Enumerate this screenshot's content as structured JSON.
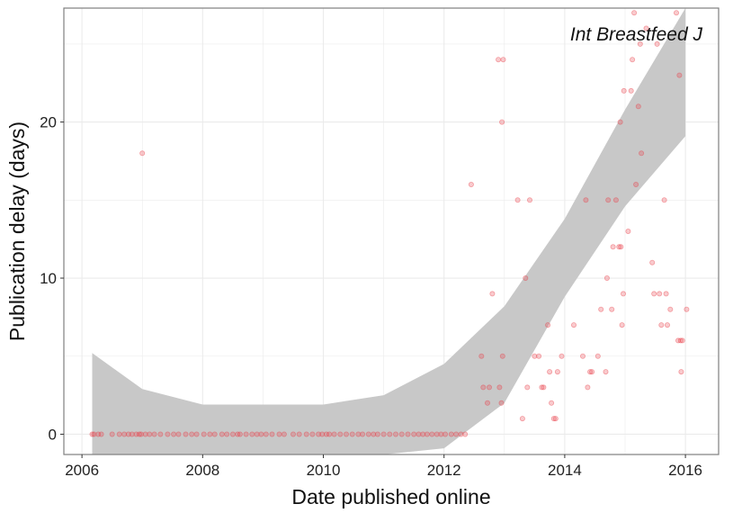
{
  "chart_data": {
    "type": "scatter",
    "title": "",
    "annotation": "Int Breastfeed J",
    "xlabel": "Date published online",
    "ylabel": "Publication delay (days)",
    "xlim": [
      2005.7,
      2016.55
    ],
    "ylim": [
      -1.3,
      27.3
    ],
    "grid": true,
    "legend": "none",
    "colors": {
      "point": "#e8404a",
      "band": "#c8c8c8",
      "grid": "#ebebeb",
      "frame": "#7f7f7f"
    },
    "x_ticks": [
      {
        "value": 2006,
        "label": "2006"
      },
      {
        "value": 2008,
        "label": "2008"
      },
      {
        "value": 2010,
        "label": "2010"
      },
      {
        "value": 2012,
        "label": "2012"
      },
      {
        "value": 2014,
        "label": "2014"
      },
      {
        "value": 2016,
        "label": "2016"
      }
    ],
    "y_ticks": [
      {
        "value": 0,
        "label": "0"
      },
      {
        "value": 10,
        "label": "10"
      },
      {
        "value": 20,
        "label": "20"
      }
    ],
    "smooth_band": {
      "x": [
        2006.17,
        2007.0,
        2008.0,
        2009.0,
        2010.0,
        2011.0,
        2012.0,
        2013.0,
        2014.0,
        2015.0,
        2016.0
      ],
      "upper": [
        5.2,
        2.9,
        1.9,
        1.9,
        1.9,
        2.5,
        4.5,
        8.2,
        13.8,
        20.8,
        27.3
      ],
      "lower": [
        null,
        null,
        null,
        null,
        null,
        null,
        -0.9,
        2.0,
        8.8,
        14.6,
        19.1
      ]
    },
    "points": [
      {
        "x": 2006.17,
        "y": 0
      },
      {
        "x": 2006.2,
        "y": 0
      },
      {
        "x": 2006.27,
        "y": 0
      },
      {
        "x": 2006.32,
        "y": 0
      },
      {
        "x": 2006.5,
        "y": 0
      },
      {
        "x": 2006.62,
        "y": 0
      },
      {
        "x": 2006.7,
        "y": 0
      },
      {
        "x": 2006.77,
        "y": 0
      },
      {
        "x": 2006.83,
        "y": 0
      },
      {
        "x": 2006.9,
        "y": 0
      },
      {
        "x": 2006.95,
        "y": 0
      },
      {
        "x": 2006.98,
        "y": 0
      },
      {
        "x": 2007.0,
        "y": 18
      },
      {
        "x": 2007.05,
        "y": 0
      },
      {
        "x": 2007.12,
        "y": 0
      },
      {
        "x": 2007.2,
        "y": 0
      },
      {
        "x": 2007.3,
        "y": 0
      },
      {
        "x": 2007.42,
        "y": 0
      },
      {
        "x": 2007.52,
        "y": 0
      },
      {
        "x": 2007.6,
        "y": 0
      },
      {
        "x": 2007.72,
        "y": 0
      },
      {
        "x": 2007.82,
        "y": 0
      },
      {
        "x": 2007.9,
        "y": 0
      },
      {
        "x": 2008.02,
        "y": 0
      },
      {
        "x": 2008.12,
        "y": 0
      },
      {
        "x": 2008.2,
        "y": 0
      },
      {
        "x": 2008.32,
        "y": 0
      },
      {
        "x": 2008.4,
        "y": 0
      },
      {
        "x": 2008.5,
        "y": 0
      },
      {
        "x": 2008.58,
        "y": 0
      },
      {
        "x": 2008.62,
        "y": 0
      },
      {
        "x": 2008.72,
        "y": 0
      },
      {
        "x": 2008.82,
        "y": 0
      },
      {
        "x": 2008.9,
        "y": 0
      },
      {
        "x": 2008.97,
        "y": 0
      },
      {
        "x": 2009.05,
        "y": 0
      },
      {
        "x": 2009.15,
        "y": 0
      },
      {
        "x": 2009.27,
        "y": 0
      },
      {
        "x": 2009.35,
        "y": 0
      },
      {
        "x": 2009.5,
        "y": 0
      },
      {
        "x": 2009.6,
        "y": 0
      },
      {
        "x": 2009.72,
        "y": 0
      },
      {
        "x": 2009.82,
        "y": 0
      },
      {
        "x": 2009.92,
        "y": 0
      },
      {
        "x": 2009.98,
        "y": 0
      },
      {
        "x": 2010.05,
        "y": 0
      },
      {
        "x": 2010.1,
        "y": 0
      },
      {
        "x": 2010.18,
        "y": 0
      },
      {
        "x": 2010.28,
        "y": 0
      },
      {
        "x": 2010.38,
        "y": 0
      },
      {
        "x": 2010.48,
        "y": 0
      },
      {
        "x": 2010.58,
        "y": 0
      },
      {
        "x": 2010.65,
        "y": 0
      },
      {
        "x": 2010.75,
        "y": 0
      },
      {
        "x": 2010.83,
        "y": 0
      },
      {
        "x": 2010.9,
        "y": 0
      },
      {
        "x": 2011.0,
        "y": 0
      },
      {
        "x": 2011.1,
        "y": 0
      },
      {
        "x": 2011.2,
        "y": 0
      },
      {
        "x": 2011.3,
        "y": 0
      },
      {
        "x": 2011.4,
        "y": 0
      },
      {
        "x": 2011.5,
        "y": 0
      },
      {
        "x": 2011.58,
        "y": 0
      },
      {
        "x": 2011.65,
        "y": 0
      },
      {
        "x": 2011.72,
        "y": 0
      },
      {
        "x": 2011.8,
        "y": 0
      },
      {
        "x": 2011.88,
        "y": 0
      },
      {
        "x": 2011.95,
        "y": 0
      },
      {
        "x": 2012.02,
        "y": 0
      },
      {
        "x": 2012.12,
        "y": 0
      },
      {
        "x": 2012.2,
        "y": 0
      },
      {
        "x": 2012.28,
        "y": 0
      },
      {
        "x": 2012.35,
        "y": 0
      },
      {
        "x": 2012.45,
        "y": 16
      },
      {
        "x": 2012.62,
        "y": 5
      },
      {
        "x": 2012.65,
        "y": 3
      },
      {
        "x": 2012.72,
        "y": 2
      },
      {
        "x": 2012.75,
        "y": 3
      },
      {
        "x": 2012.8,
        "y": 9
      },
      {
        "x": 2012.9,
        "y": 24
      },
      {
        "x": 2012.92,
        "y": 3
      },
      {
        "x": 2012.96,
        "y": 20
      },
      {
        "x": 2012.97,
        "y": 5
      },
      {
        "x": 2012.98,
        "y": 24
      },
      {
        "x": 2012.95,
        "y": 2
      },
      {
        "x": 2013.22,
        "y": 15
      },
      {
        "x": 2013.3,
        "y": 1
      },
      {
        "x": 2013.35,
        "y": 10
      },
      {
        "x": 2013.38,
        "y": 3
      },
      {
        "x": 2013.42,
        "y": 15
      },
      {
        "x": 2013.5,
        "y": 5
      },
      {
        "x": 2013.57,
        "y": 5
      },
      {
        "x": 2013.62,
        "y": 3
      },
      {
        "x": 2013.65,
        "y": 3
      },
      {
        "x": 2013.72,
        "y": 7
      },
      {
        "x": 2013.75,
        "y": 4
      },
      {
        "x": 2013.78,
        "y": 2
      },
      {
        "x": 2013.82,
        "y": 1
      },
      {
        "x": 2013.85,
        "y": 1
      },
      {
        "x": 2013.88,
        "y": 4
      },
      {
        "x": 2013.95,
        "y": 5
      },
      {
        "x": 2014.15,
        "y": 7
      },
      {
        "x": 2014.3,
        "y": 5
      },
      {
        "x": 2014.35,
        "y": 15
      },
      {
        "x": 2014.38,
        "y": 3
      },
      {
        "x": 2014.42,
        "y": 4
      },
      {
        "x": 2014.45,
        "y": 4
      },
      {
        "x": 2014.55,
        "y": 5
      },
      {
        "x": 2014.6,
        "y": 8
      },
      {
        "x": 2014.68,
        "y": 4
      },
      {
        "x": 2014.7,
        "y": 10
      },
      {
        "x": 2014.72,
        "y": 15
      },
      {
        "x": 2014.78,
        "y": 8
      },
      {
        "x": 2014.8,
        "y": 12
      },
      {
        "x": 2014.85,
        "y": 15
      },
      {
        "x": 2014.9,
        "y": 12
      },
      {
        "x": 2014.92,
        "y": 20
      },
      {
        "x": 2014.93,
        "y": 12
      },
      {
        "x": 2014.95,
        "y": 7
      },
      {
        "x": 2014.97,
        "y": 9
      },
      {
        "x": 2014.98,
        "y": 22
      },
      {
        "x": 2015.05,
        "y": 13
      },
      {
        "x": 2015.1,
        "y": 22
      },
      {
        "x": 2015.12,
        "y": 24
      },
      {
        "x": 2015.15,
        "y": 27
      },
      {
        "x": 2015.18,
        "y": 16
      },
      {
        "x": 2015.22,
        "y": 21
      },
      {
        "x": 2015.25,
        "y": 25
      },
      {
        "x": 2015.27,
        "y": 18
      },
      {
        "x": 2015.35,
        "y": 26
      },
      {
        "x": 2015.45,
        "y": 11
      },
      {
        "x": 2015.48,
        "y": 9
      },
      {
        "x": 2015.53,
        "y": 25
      },
      {
        "x": 2015.57,
        "y": 9
      },
      {
        "x": 2015.6,
        "y": 7
      },
      {
        "x": 2015.65,
        "y": 15
      },
      {
        "x": 2015.68,
        "y": 9
      },
      {
        "x": 2015.7,
        "y": 7
      },
      {
        "x": 2015.75,
        "y": 8
      },
      {
        "x": 2015.85,
        "y": 27
      },
      {
        "x": 2015.88,
        "y": 6
      },
      {
        "x": 2015.9,
        "y": 23
      },
      {
        "x": 2015.92,
        "y": 6
      },
      {
        "x": 2015.93,
        "y": 4
      },
      {
        "x": 2015.95,
        "y": 6
      },
      {
        "x": 2016.02,
        "y": 8
      }
    ]
  }
}
